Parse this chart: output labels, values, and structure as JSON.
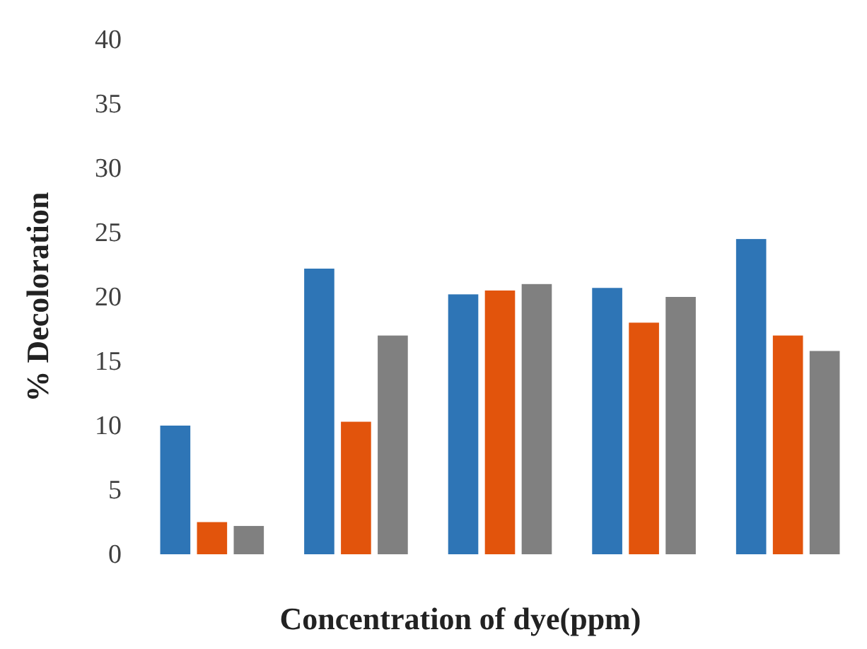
{
  "chart_data": {
    "type": "bar",
    "xlabel": "Concentration of dye(ppm)",
    "ylabel": "% Decoloration",
    "categories": [
      null,
      null,
      null,
      null,
      null
    ],
    "series": [
      {
        "color": "#2e75b6",
        "values": [
          10.0,
          22.2,
          20.2,
          20.7,
          24.5
        ]
      },
      {
        "color": "#e2540c",
        "values": [
          2.5,
          10.3,
          20.5,
          18.0,
          17.0
        ]
      },
      {
        "color": "#808080",
        "values": [
          2.2,
          17.0,
          21.0,
          20.0,
          15.8
        ]
      }
    ],
    "ylim": [
      0,
      40
    ],
    "yticks": [
      0,
      5,
      10,
      15,
      20,
      25,
      30,
      35,
      40
    ],
    "grid": false
  }
}
